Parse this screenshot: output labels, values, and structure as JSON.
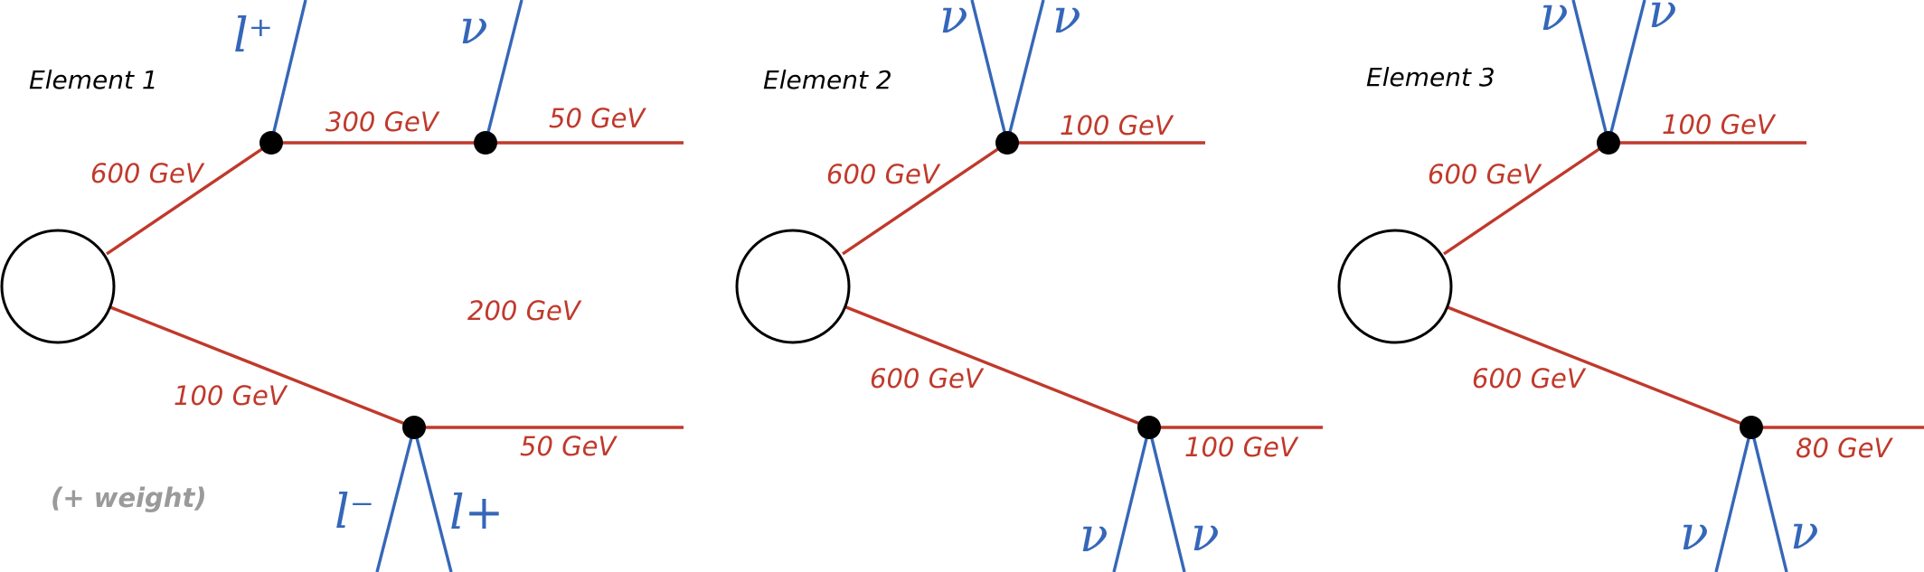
{
  "elements": [
    {
      "title": "Element 1",
      "branch_top": {
        "mother": "600 GeV",
        "intermediate": "300 GeV",
        "final": "50 GeV",
        "emitted": [
          "l⁺",
          "ν"
        ]
      },
      "branch_bottom": {
        "mother": "100 GeV",
        "final": "50 GeV",
        "emitted": [
          "l⁻",
          "l+"
        ]
      },
      "extra_mass": "200 GeV",
      "note": "(+ weight)"
    },
    {
      "title": "Element 2",
      "branch_top": {
        "mother": "600 GeV",
        "final": "100 GeV",
        "emitted": [
          "ν",
          "ν"
        ]
      },
      "branch_bottom": {
        "mother": "600 GeV",
        "final": "100 GeV",
        "emitted": [
          "ν",
          "ν"
        ]
      }
    },
    {
      "title": "Element 3",
      "branch_top": {
        "mother": "600 GeV",
        "final": "100 GeV",
        "emitted": [
          "ν",
          "ν"
        ]
      },
      "branch_bottom": {
        "mother": "600 GeV",
        "final": "80 GeV",
        "emitted": [
          "ν",
          "ν"
        ]
      }
    }
  ],
  "colors": {
    "sparticle_line": "#c0392b",
    "sm_particle": "#3567b9",
    "vertex": "#000000",
    "note": "#9a9a9a"
  }
}
